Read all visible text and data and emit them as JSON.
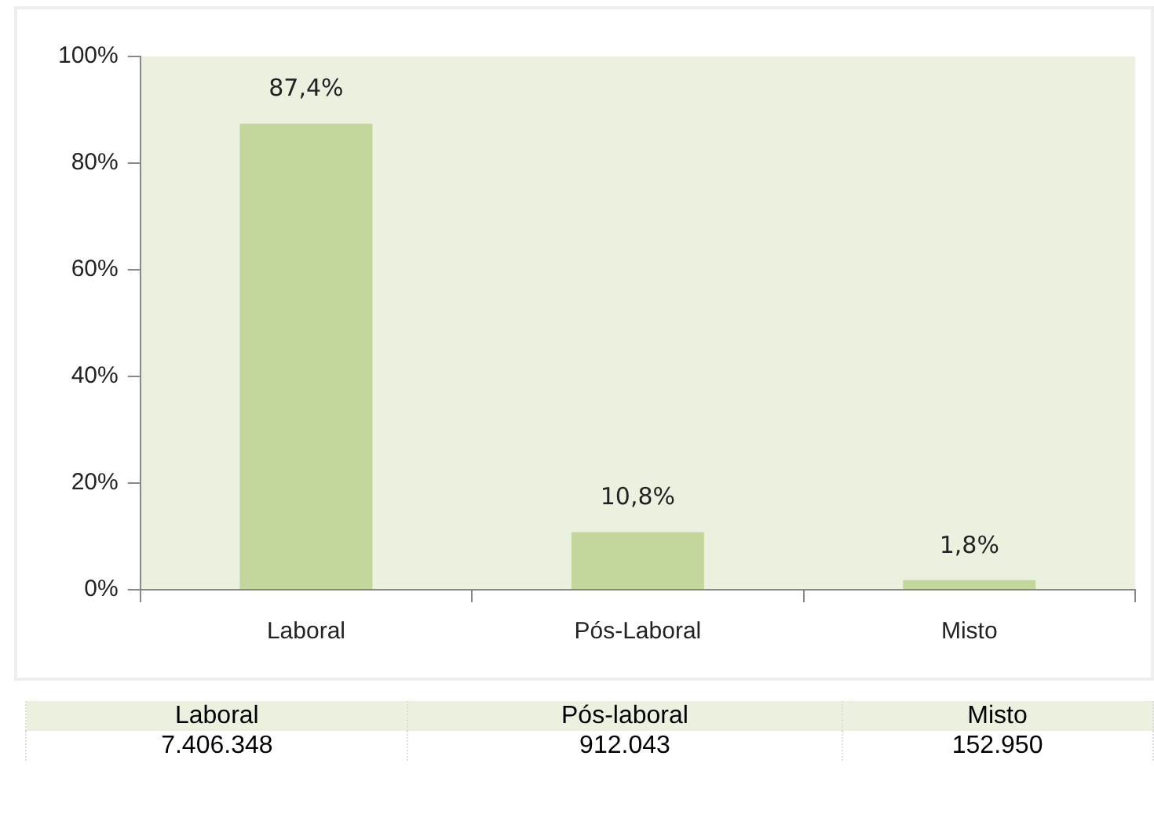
{
  "chart_data": {
    "type": "bar",
    "categories": [
      "Laboral",
      "Pós-Laboral",
      "Misto"
    ],
    "values": [
      87.4,
      10.8,
      1.8
    ],
    "value_labels": [
      "87,4%",
      "10,8%",
      "1,8%"
    ],
    "color": "#c3d69b",
    "ylim": [
      0,
      100
    ],
    "yticks": [
      {
        "value": 0,
        "label": "0%"
      },
      {
        "value": 20,
        "label": "20%"
      },
      {
        "value": 40,
        "label": "40%"
      },
      {
        "value": 60,
        "label": "60%"
      },
      {
        "value": 80,
        "label": "80%"
      },
      {
        "value": 100,
        "label": "100%"
      }
    ],
    "legend": false,
    "annotations": [
      "Laboral",
      "Pós-laboral",
      "Misto",
      "7.406.348",
      "912.043",
      "152.950"
    ]
  }
}
